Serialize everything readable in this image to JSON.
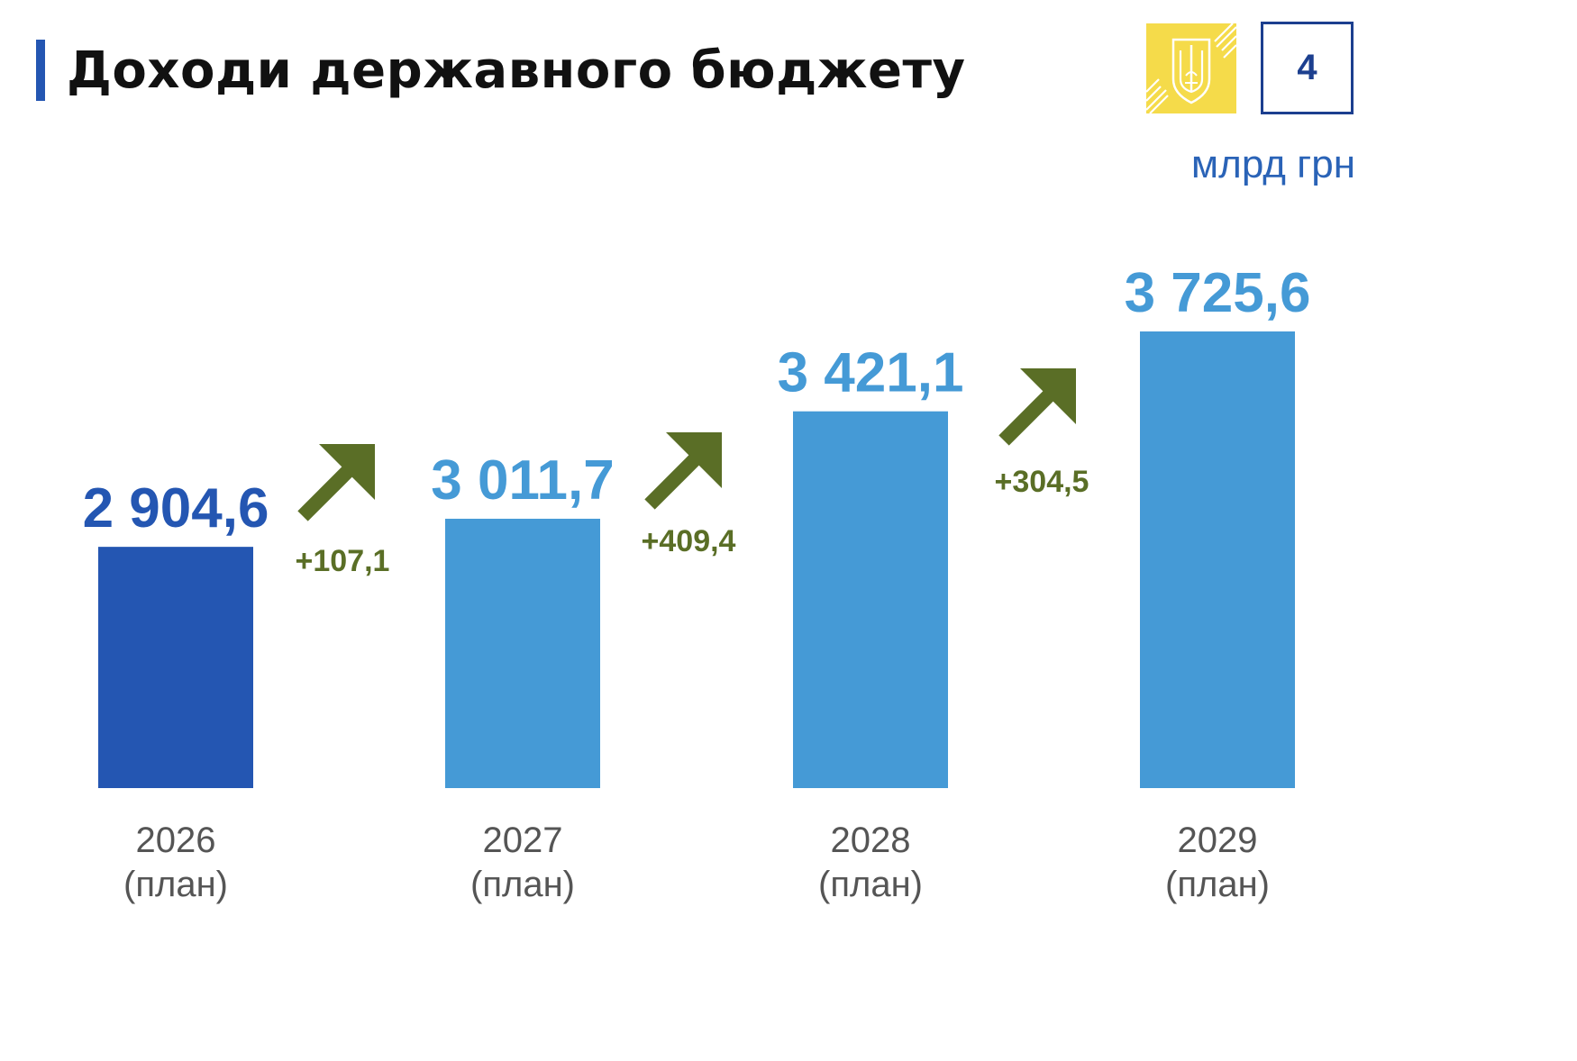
{
  "header": {
    "title": "Доходи державного бюджету",
    "page_number": "4",
    "unit": "млрд грн"
  },
  "logo": {
    "name": "ukraine-trident-emblem",
    "background": "#f5db4a",
    "stroke": "#ffffff"
  },
  "chart_data": {
    "type": "bar",
    "title": "Доходи державного бюджету",
    "unit": "млрд грн",
    "categories": [
      "2026",
      "2027",
      "2028",
      "2029"
    ],
    "category_sublabels": [
      "(план)",
      "(план)",
      "(план)",
      "(план)"
    ],
    "values": [
      2904.6,
      3011.7,
      3421.1,
      3725.6
    ],
    "value_labels": [
      "2 904,6",
      "3 011,7",
      "3 421,1",
      "3 725,6"
    ],
    "bar_colors": [
      "#2456b2",
      "#459ad6",
      "#459ad6",
      "#459ad6"
    ],
    "value_label_colors": [
      "#2456b2",
      "#459ad6",
      "#459ad6",
      "#459ad6"
    ],
    "increments": [
      {
        "label": "+107,1",
        "value": 107.1
      },
      {
        "label": "+409,4",
        "value": 409.4
      },
      {
        "label": "+304,5",
        "value": 304.5
      }
    ],
    "increment_color": "#5a6e26",
    "axis_label_color": "#555555",
    "grid": false,
    "legend": "none"
  }
}
